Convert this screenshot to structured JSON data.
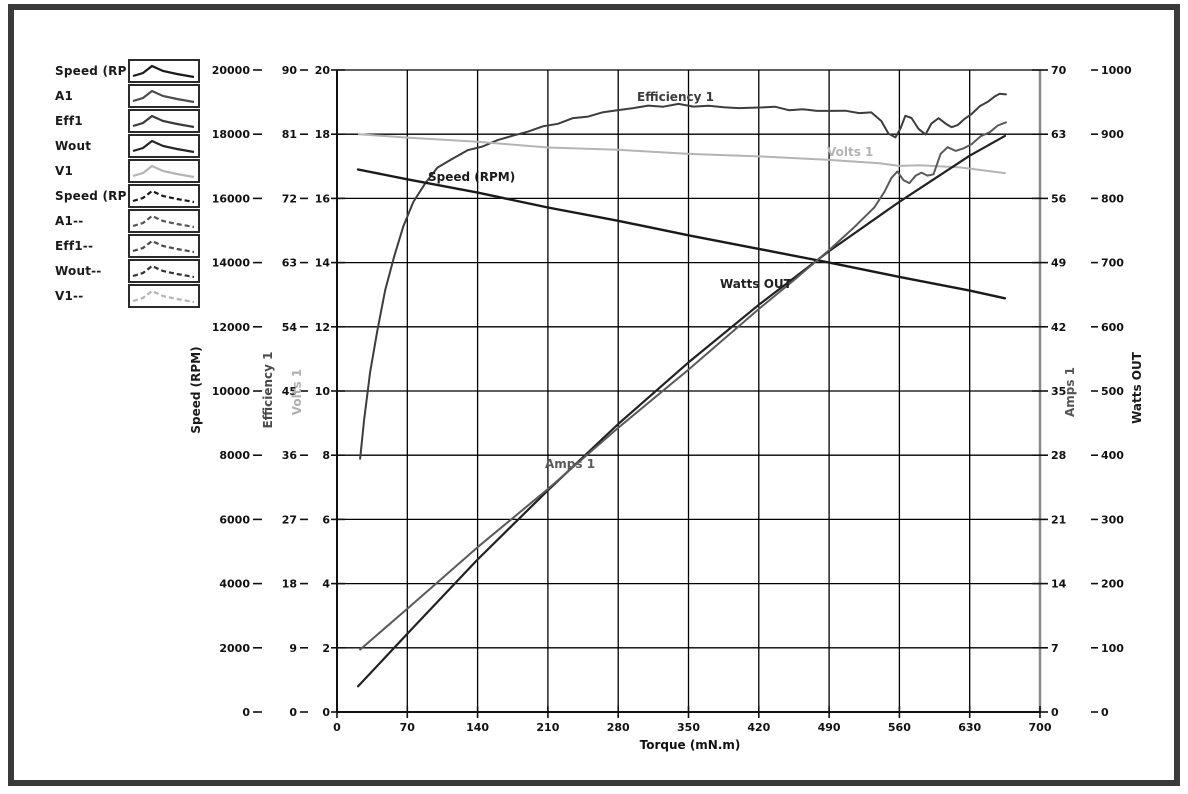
{
  "chart_data": {
    "type": "line",
    "title": "",
    "xlabel": "Torque (mN.m)",
    "x_range": [
      0,
      700
    ],
    "x_ticks": [
      0,
      70,
      140,
      210,
      280,
      350,
      420,
      490,
      560,
      630,
      700
    ],
    "grid": true,
    "axes": [
      {
        "id": "speed",
        "label": "Speed (RPM)",
        "side": "left",
        "range": [
          0,
          20000
        ],
        "ticks": [
          0,
          2000,
          4000,
          6000,
          8000,
          10000,
          12000,
          14000,
          16000,
          18000,
          20000
        ],
        "color": "#1a1a1a"
      },
      {
        "id": "eff",
        "label": "Efficiency 1",
        "side": "left",
        "range": [
          0,
          90
        ],
        "ticks": [
          0,
          9,
          18,
          27,
          36,
          45,
          54,
          63,
          72,
          81,
          90
        ],
        "color": "#4a4a4a"
      },
      {
        "id": "volts",
        "label": "Volts 1",
        "side": "left",
        "range": [
          0,
          20
        ],
        "ticks": [
          0,
          2,
          4,
          6,
          8,
          10,
          12,
          14,
          16,
          18,
          20
        ],
        "color": "#b0b0b0"
      },
      {
        "id": "amps",
        "label": "Amps 1",
        "side": "right",
        "range": [
          0,
          70
        ],
        "ticks": [
          0,
          7,
          14,
          21,
          28,
          35,
          42,
          49,
          56,
          63,
          70
        ],
        "color": "#555555"
      },
      {
        "id": "watts",
        "label": "Watts OUT",
        "side": "right",
        "range": [
          0,
          1000
        ],
        "ticks": [
          0,
          100,
          200,
          300,
          400,
          500,
          600,
          700,
          800,
          900,
          1000
        ],
        "color": "#1a1a1a"
      }
    ],
    "series": [
      {
        "name": "Efficiency 1",
        "axis": "eff",
        "color": "#3d3d3d",
        "width": 2,
        "noise": 1.1,
        "points": [
          [
            23,
            35.5
          ],
          [
            27,
            41
          ],
          [
            33,
            47.5
          ],
          [
            40,
            53.5
          ],
          [
            48,
            59
          ],
          [
            57,
            64
          ],
          [
            66,
            68
          ],
          [
            76,
            71.5
          ],
          [
            88,
            74.2
          ],
          [
            100,
            76.2
          ],
          [
            115,
            77.7
          ],
          [
            130,
            78.6
          ],
          [
            145,
            79.4
          ],
          [
            160,
            80.1
          ],
          [
            175,
            80.8
          ],
          [
            190,
            81.4
          ],
          [
            205,
            82.0
          ],
          [
            220,
            82.6
          ],
          [
            235,
            83.1
          ],
          [
            250,
            83.6
          ],
          [
            265,
            84.0
          ],
          [
            280,
            84.4
          ],
          [
            295,
            84.7
          ],
          [
            310,
            84.9
          ],
          [
            325,
            85.0
          ],
          [
            340,
            85.1
          ],
          [
            355,
            85.0
          ],
          [
            370,
            84.9
          ],
          [
            385,
            84.8
          ],
          [
            400,
            84.7
          ],
          [
            412,
            84.6
          ],
          [
            424,
            84.9
          ],
          [
            436,
            84.7
          ],
          [
            450,
            84.5
          ],
          [
            464,
            84.4
          ],
          [
            478,
            84.3
          ],
          [
            492,
            84.3
          ],
          [
            506,
            84.2
          ],
          [
            520,
            84.1
          ],
          [
            532,
            83.9
          ],
          [
            542,
            83.0
          ],
          [
            549,
            81.0
          ],
          [
            556,
            80.6
          ],
          [
            561,
            81.8
          ],
          [
            566,
            83.5
          ],
          [
            572,
            83.4
          ],
          [
            579,
            81.6
          ],
          [
            586,
            81.1
          ],
          [
            592,
            82.4
          ],
          [
            599,
            83.3
          ],
          [
            606,
            82.5
          ],
          [
            612,
            81.9
          ],
          [
            618,
            82.4
          ],
          [
            625,
            83.0
          ],
          [
            632,
            84.0
          ],
          [
            640,
            84.8
          ],
          [
            648,
            85.6
          ],
          [
            655,
            86.3
          ],
          [
            660,
            86.6
          ],
          [
            666,
            86.7
          ]
        ]
      },
      {
        "name": "Volts 1",
        "axis": "volts",
        "color": "#b4b4b4",
        "width": 2,
        "noise": 0.5,
        "points": [
          [
            22,
            18.0
          ],
          [
            70,
            17.9
          ],
          [
            140,
            17.75
          ],
          [
            210,
            17.6
          ],
          [
            280,
            17.5
          ],
          [
            350,
            17.4
          ],
          [
            420,
            17.3
          ],
          [
            490,
            17.2
          ],
          [
            540,
            17.1
          ],
          [
            560,
            17.0
          ],
          [
            580,
            17.05
          ],
          [
            620,
            16.95
          ],
          [
            665,
            16.8
          ]
        ]
      },
      {
        "name": "Speed (RPM)",
        "axis": "speed",
        "color": "#1a1a1a",
        "width": 2.4,
        "noise": 0.4,
        "points": [
          [
            21,
            16900
          ],
          [
            70,
            16600
          ],
          [
            140,
            16170
          ],
          [
            210,
            15730
          ],
          [
            280,
            15290
          ],
          [
            350,
            14860
          ],
          [
            420,
            14420
          ],
          [
            490,
            14000
          ],
          [
            560,
            13560
          ],
          [
            630,
            13120
          ],
          [
            665,
            12900
          ]
        ]
      },
      {
        "name": "Watts OUT",
        "axis": "watts",
        "color": "#222222",
        "width": 2.2,
        "noise": 0.4,
        "points": [
          [
            21,
            40
          ],
          [
            70,
            122
          ],
          [
            140,
            237
          ],
          [
            210,
            346
          ],
          [
            280,
            448
          ],
          [
            350,
            545
          ],
          [
            420,
            634
          ],
          [
            490,
            718
          ],
          [
            560,
            795
          ],
          [
            630,
            866
          ],
          [
            665,
            898
          ]
        ]
      },
      {
        "name": "Amps 1",
        "axis": "amps",
        "color": "#5a5a5a",
        "width": 2,
        "noise": 0.8,
        "points": [
          [
            23,
            6.8
          ],
          [
            70,
            11.3
          ],
          [
            140,
            17.9
          ],
          [
            210,
            24.4
          ],
          [
            280,
            30.9
          ],
          [
            350,
            37.4
          ],
          [
            420,
            43.9
          ],
          [
            455,
            47.1
          ],
          [
            490,
            50.4
          ],
          [
            515,
            52.8
          ],
          [
            535,
            55.1
          ],
          [
            545,
            56.6
          ],
          [
            552,
            58.3
          ],
          [
            558,
            58.9
          ],
          [
            564,
            58.0
          ],
          [
            570,
            57.7
          ],
          [
            576,
            58.4
          ],
          [
            582,
            58.9
          ],
          [
            588,
            58.4
          ],
          [
            594,
            58.7
          ],
          [
            601,
            60.8
          ],
          [
            608,
            61.6
          ],
          [
            616,
            61.2
          ],
          [
            624,
            61.4
          ],
          [
            632,
            62.0
          ],
          [
            641,
            62.7
          ],
          [
            650,
            63.3
          ],
          [
            658,
            63.9
          ],
          [
            666,
            64.3
          ]
        ]
      }
    ],
    "legend_position": "top-left-outside"
  },
  "legend": {
    "items": [
      {
        "label": "Speed (RP",
        "color": "#1a1a1a",
        "dash": false
      },
      {
        "label": "A1",
        "color": "#4d4d4d",
        "dash": false
      },
      {
        "label": "Eff1",
        "color": "#3a3a3a",
        "dash": false
      },
      {
        "label": "Wout",
        "color": "#262626",
        "dash": false
      },
      {
        "label": "V1",
        "color": "#b4b4b4",
        "dash": false
      },
      {
        "label": "Speed (RP",
        "color": "#1a1a1a",
        "dash": true
      },
      {
        "label": "A1--",
        "color": "#555555",
        "dash": true
      },
      {
        "label": "Eff1--",
        "color": "#4a4a4a",
        "dash": true
      },
      {
        "label": "Wout--",
        "color": "#333333",
        "dash": true
      },
      {
        "label": "V1--",
        "color": "#b4b4b4",
        "dash": true
      }
    ]
  }
}
